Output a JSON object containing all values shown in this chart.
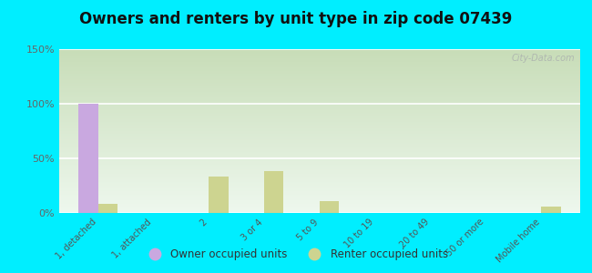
{
  "title": "Owners and renters by unit type in zip code 07439",
  "categories": [
    "1, detached",
    "1, attached",
    "2",
    "3 or 4",
    "5 to 9",
    "10 to 19",
    "20 to 49",
    "50 or more",
    "Mobile home"
  ],
  "owner_values": [
    100,
    0,
    0,
    0,
    0,
    0,
    0,
    0,
    0
  ],
  "renter_values": [
    8,
    0,
    33,
    38,
    11,
    0,
    0,
    0,
    6
  ],
  "owner_color": "#c9a8e0",
  "renter_color": "#cdd490",
  "ylim": [
    0,
    150
  ],
  "yticks": [
    0,
    50,
    100,
    150
  ],
  "ytick_labels": [
    "0%",
    "50%",
    "100%",
    "150%"
  ],
  "bar_width": 0.35,
  "grad_top": "#c8ddb8",
  "grad_bottom": "#eef8ee",
  "outer_bg": "#00eeff",
  "watermark": "City-Data.com",
  "legend_owner": "Owner occupied units",
  "legend_renter": "Renter occupied units",
  "title_fontsize": 12,
  "tick_fontsize": 7,
  "ytick_fontsize": 8
}
